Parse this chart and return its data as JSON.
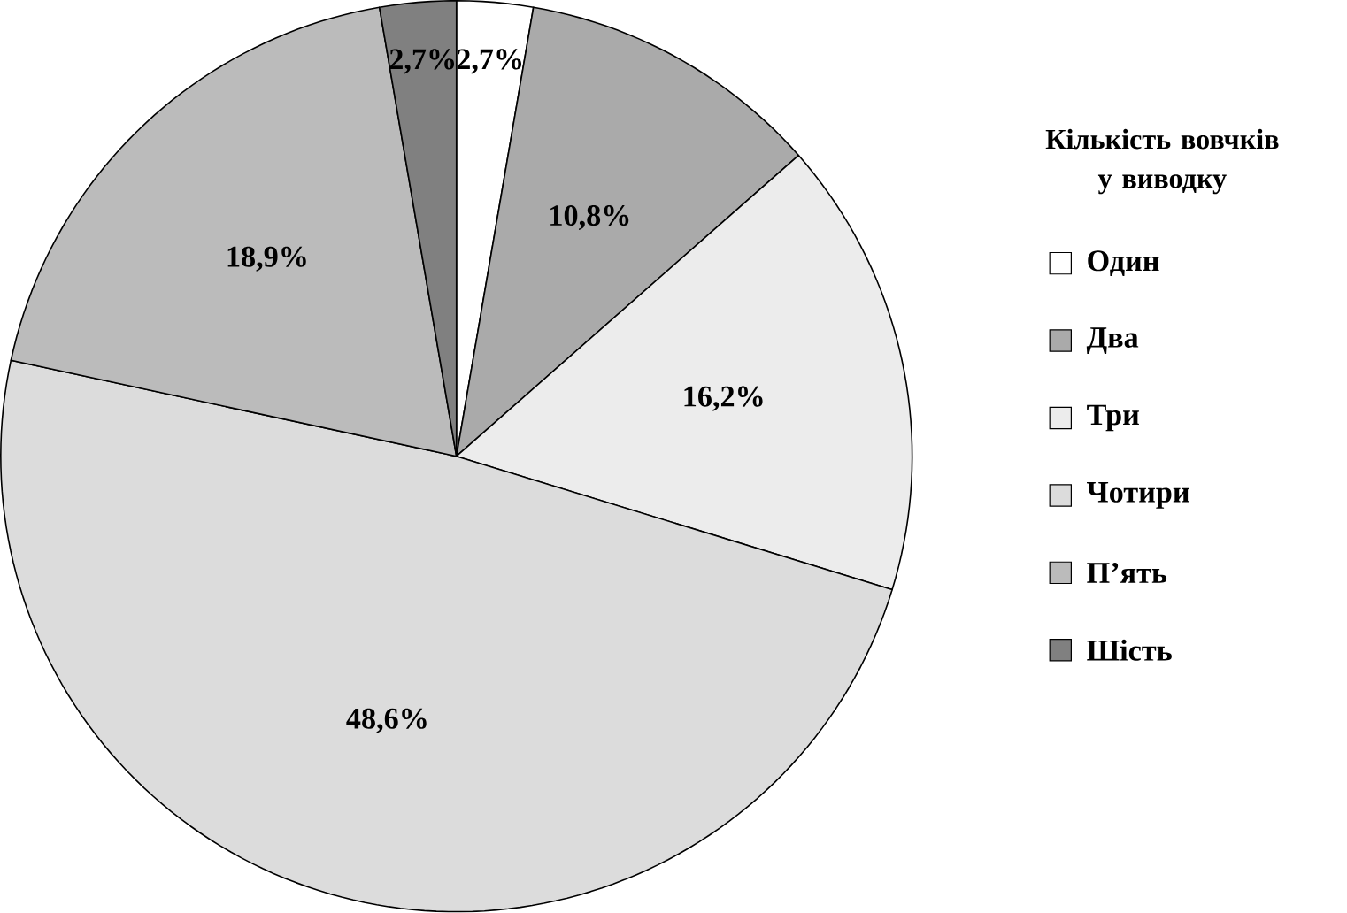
{
  "chart_data": {
    "type": "pie",
    "legend_title": "Кількість вовчків у виводку",
    "categories": [
      "Один",
      "Два",
      "Три",
      "Чотири",
      "П’ять",
      "Шість"
    ],
    "values": [
      2.7,
      10.8,
      16.2,
      48.6,
      18.9,
      2.7
    ],
    "value_labels": [
      "2,7%",
      "10,8%",
      "16,2%",
      "48,6%",
      "18,9%",
      "2,7%"
    ],
    "colors": [
      "#ffffff",
      "#aaaaaa",
      "#ececec",
      "#dcdcdc",
      "#bbbbbb",
      "#808080"
    ],
    "legend": "right"
  }
}
